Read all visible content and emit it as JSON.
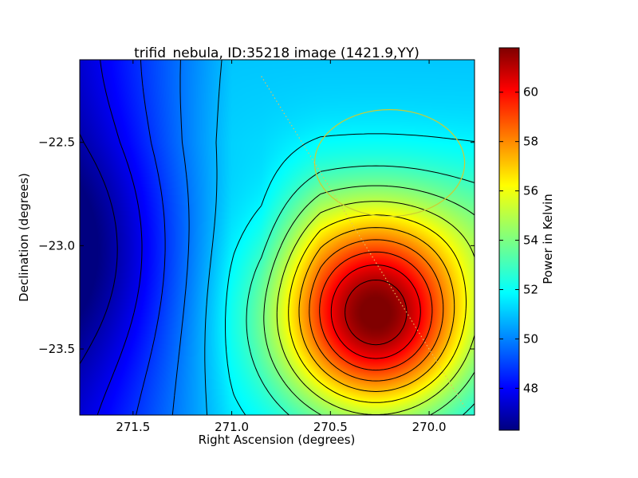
{
  "chart_data": {
    "type": "heatmap",
    "title": "trifid_nebula, ID:35218 image (1421.9,YY)",
    "xlabel": "Right Ascension (degrees)",
    "ylabel": "Declination (degrees)",
    "xlim": [
      271.77,
      269.77
    ],
    "ylim": [
      -23.82,
      -22.1
    ],
    "x_ticks": [
      271.5,
      271.0,
      270.5,
      270.0
    ],
    "x_tick_labels": [
      "271.5",
      "271.0",
      "270.5",
      "270.0"
    ],
    "y_ticks": [
      -22.5,
      -23.0,
      -23.5
    ],
    "y_tick_labels": [
      "−22.5",
      "−23.0",
      "−23.5"
    ],
    "colorbar": {
      "label": "Power in Kelvin",
      "min": 46.3,
      "max": 61.8,
      "ticks": [
        48,
        50,
        52,
        54,
        56,
        58,
        60
      ],
      "tick_labels": [
        "48",
        "50",
        "52",
        "54",
        "56",
        "58",
        "60"
      ],
      "colormap": "jet"
    },
    "features": {
      "minimum": {
        "ra": 271.77,
        "dec": -23.02,
        "value": 46.3
      },
      "maximum": {
        "ra": 270.27,
        "dec": -23.35,
        "value": 61.8
      },
      "circle": {
        "ra": 270.2,
        "dec": -22.6,
        "radius_deg": 0.38,
        "color": "#cccc33"
      },
      "dotted_line": {
        "from": {
          "ra": 270.85,
          "dec": -22.18
        },
        "to": {
          "ra": 269.82,
          "dec": -23.78
        },
        "color": "#e0c060"
      }
    }
  }
}
